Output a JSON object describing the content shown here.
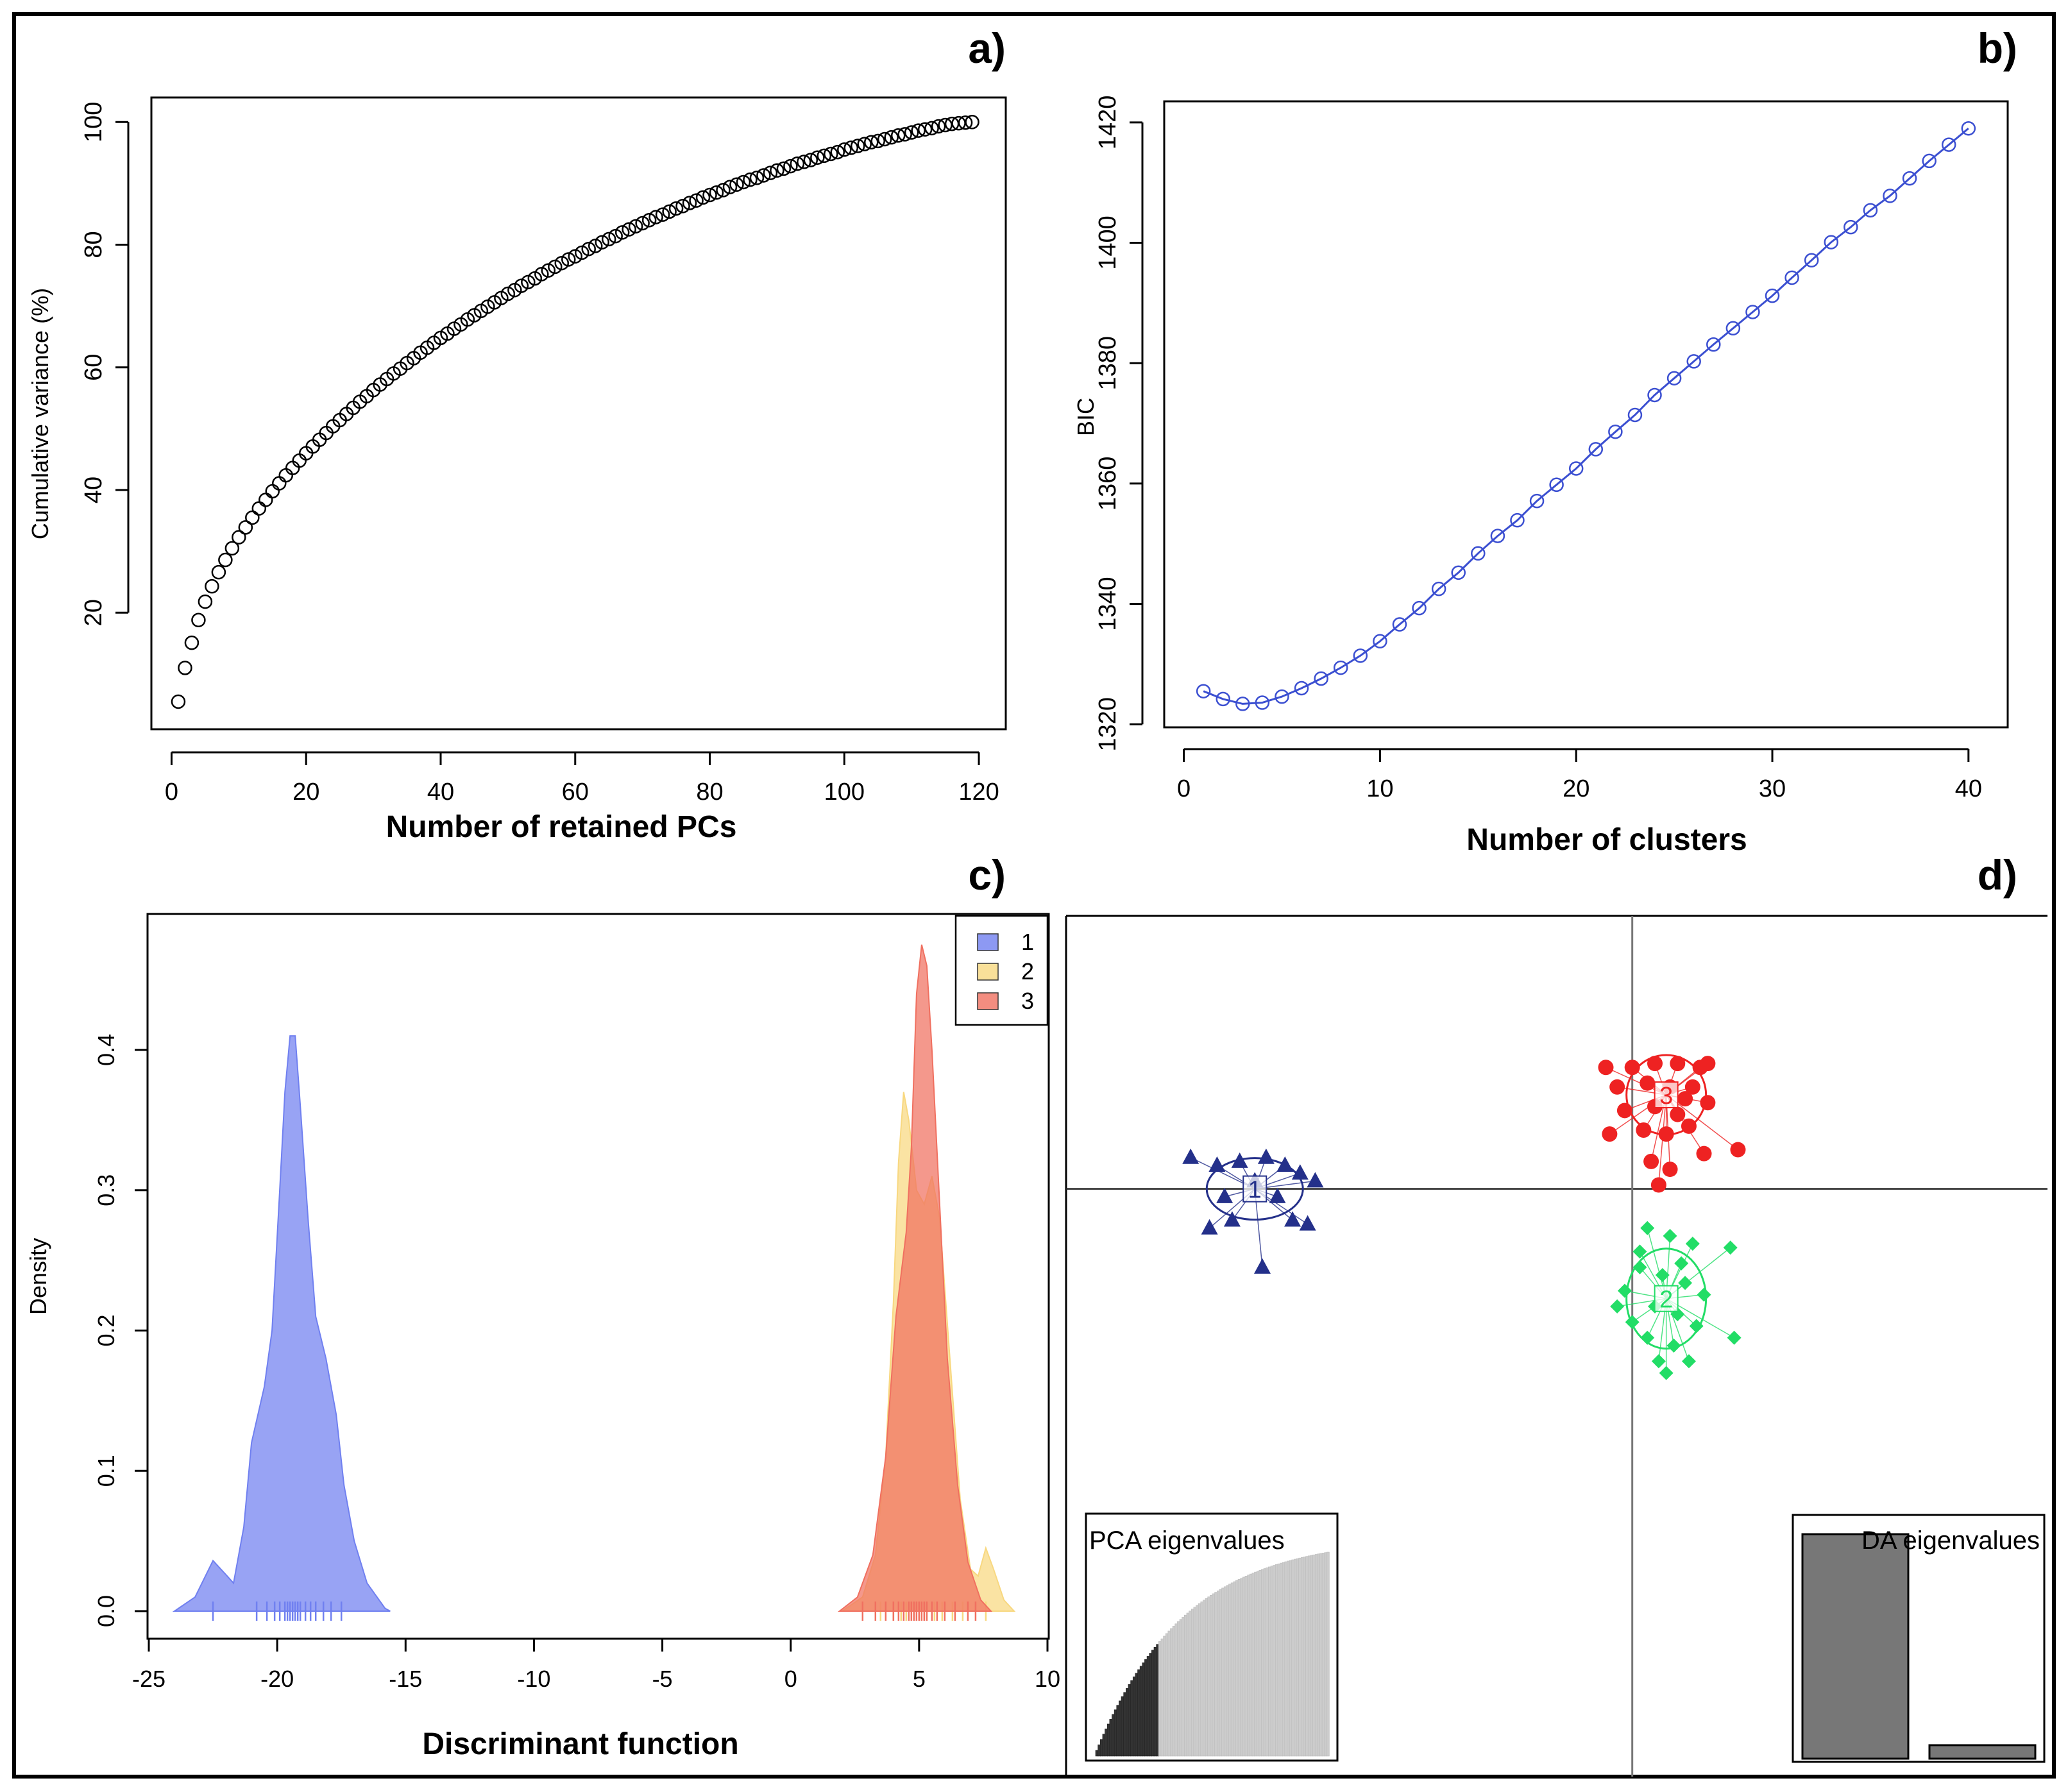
{
  "panels": {
    "a": {
      "label": "a)"
    },
    "b": {
      "label": "b)"
    },
    "c": {
      "label": "c)"
    },
    "d": {
      "label": "d)"
    }
  },
  "chart_data": [
    {
      "id": "a",
      "type": "scatter",
      "title": "",
      "xlabel": "Number of retained PCs",
      "ylabel": "Cumulative variance (%)",
      "xlim": [
        -3,
        124
      ],
      "ylim": [
        1,
        104
      ],
      "xticks": [
        0,
        20,
        40,
        60,
        80,
        100,
        120
      ],
      "yticks": [
        20,
        40,
        60,
        80,
        100
      ],
      "n_points": 119,
      "curve_model": "cumulative variance approx 100*(1-exp(-k/44))/(1-exp(-119/44)) + small offset; first value 5.5, last 100",
      "x": [
        1,
        2,
        3,
        4,
        5,
        6,
        7,
        8,
        9,
        10,
        11,
        12,
        13,
        14,
        15,
        16,
        17,
        18,
        19,
        20,
        21,
        22,
        23,
        24,
        25,
        26,
        27,
        28,
        29,
        30,
        31,
        32,
        33,
        34,
        35,
        36,
        37,
        38,
        39,
        40,
        41,
        42,
        43,
        44,
        45,
        46,
        47,
        48,
        49,
        50,
        51,
        52,
        53,
        54,
        55,
        56,
        57,
        58,
        59,
        60,
        61,
        62,
        63,
        64,
        65,
        66,
        67,
        68,
        69,
        70,
        71,
        72,
        73,
        74,
        75,
        76,
        77,
        78,
        79,
        80,
        81,
        82,
        83,
        84,
        85,
        86,
        87,
        88,
        89,
        90,
        91,
        92,
        93,
        94,
        95,
        96,
        97,
        98,
        99,
        100,
        101,
        102,
        103,
        104,
        105,
        106,
        107,
        108,
        109,
        110,
        111,
        112,
        113,
        114,
        115,
        116,
        117,
        118,
        119
      ],
      "y": [
        5.5,
        11.0,
        15.1,
        18.8,
        21.8,
        24.3,
        26.6,
        28.6,
        30.5,
        32.3,
        33.9,
        35.5,
        37.0,
        38.4,
        39.8,
        41.1,
        42.4,
        43.6,
        44.8,
        46.0,
        47.1,
        48.2,
        49.3,
        50.4,
        51.4,
        52.4,
        53.4,
        54.4,
        55.3,
        56.3,
        57.2,
        58.1,
        59.0,
        59.8,
        60.7,
        61.5,
        62.4,
        63.2,
        64.0,
        64.8,
        65.5,
        66.3,
        67.0,
        67.8,
        68.5,
        69.2,
        69.9,
        70.6,
        71.3,
        72.0,
        72.6,
        73.3,
        73.9,
        74.5,
        75.2,
        75.8,
        76.4,
        77.0,
        77.6,
        78.1,
        78.7,
        79.3,
        79.8,
        80.4,
        80.9,
        81.4,
        82.0,
        82.5,
        83.0,
        83.5,
        84.0,
        84.5,
        84.9,
        85.4,
        85.9,
        86.3,
        86.8,
        87.2,
        87.7,
        88.1,
        88.5,
        88.9,
        89.4,
        89.8,
        90.2,
        90.6,
        90.9,
        91.3,
        91.7,
        92.1,
        92.4,
        92.8,
        93.2,
        93.5,
        93.8,
        94.2,
        94.5,
        94.8,
        95.1,
        95.5,
        95.8,
        96.1,
        96.4,
        96.7,
        96.9,
        97.2,
        97.5,
        97.8,
        98.0,
        98.3,
        98.6,
        98.8,
        99.0,
        99.3,
        99.5,
        99.7,
        99.8,
        99.9,
        100.0
      ],
      "marker": "open-circle",
      "color": "#000000"
    },
    {
      "id": "b",
      "type": "line",
      "title": "",
      "xlabel": "Number of clusters",
      "ylabel": "BIC",
      "xlim": [
        -1,
        42
      ],
      "ylim": [
        1320,
        1420
      ],
      "xticks": [
        0,
        10,
        20,
        30,
        40
      ],
      "yticks": [
        1320,
        1340,
        1360,
        1380,
        1400,
        1420
      ],
      "x": [
        1,
        2,
        3,
        4,
        5,
        6,
        7,
        8,
        9,
        10,
        11,
        12,
        13,
        14,
        15,
        16,
        17,
        18,
        19,
        20,
        21,
        22,
        23,
        24,
        25,
        26,
        27,
        28,
        29,
        30,
        31,
        32,
        33,
        34,
        35,
        36,
        37,
        38,
        39,
        40
      ],
      "y": [
        1325.5,
        1324.2,
        1323.4,
        1323.6,
        1324.6,
        1326.0,
        1327.6,
        1329.4,
        1331.4,
        1333.8,
        1336.6,
        1339.3,
        1342.5,
        1345.2,
        1348.4,
        1351.3,
        1353.9,
        1357.1,
        1359.8,
        1362.5,
        1365.7,
        1368.6,
        1371.4,
        1374.7,
        1377.5,
        1380.3,
        1383.1,
        1385.8,
        1388.5,
        1391.2,
        1394.2,
        1397.1,
        1400.1,
        1402.6,
        1405.4,
        1407.8,
        1410.7,
        1413.6,
        1416.3,
        1419.0
      ],
      "marker": "open-circle",
      "color": "#3b4fd1"
    },
    {
      "id": "c",
      "type": "area",
      "title": "",
      "xlabel": "Discriminant function",
      "ylabel": "Density",
      "xlim": [
        -25,
        10
      ],
      "ylim": [
        -0.02,
        0.49
      ],
      "xticks": [
        -25,
        -20,
        -15,
        -10,
        -5,
        0,
        5,
        10
      ],
      "yticks": [
        0.0,
        0.1,
        0.2,
        0.3,
        0.4
      ],
      "legend": {
        "position": "top-right",
        "entries": [
          "1",
          "2",
          "3"
        ]
      },
      "series": [
        {
          "name": "1",
          "color": "#7080f0",
          "points": [
            [
              -24,
              0
            ],
            [
              -23.2,
              0.01
            ],
            [
              -22.5,
              0.036
            ],
            [
              -22.0,
              0.026
            ],
            [
              -21.7,
              0.02
            ],
            [
              -21.3,
              0.06
            ],
            [
              -21.0,
              0.12
            ],
            [
              -20.5,
              0.16
            ],
            [
              -20.2,
              0.2
            ],
            [
              -19.9,
              0.3
            ],
            [
              -19.7,
              0.37
            ],
            [
              -19.5,
              0.41
            ],
            [
              -19.3,
              0.41
            ],
            [
              -19.1,
              0.36
            ],
            [
              -18.8,
              0.28
            ],
            [
              -18.5,
              0.21
            ],
            [
              -18.1,
              0.18
            ],
            [
              -17.7,
              0.14
            ],
            [
              -17.4,
              0.09
            ],
            [
              -17.0,
              0.05
            ],
            [
              -16.5,
              0.02
            ],
            [
              -15.8,
              0.002
            ],
            [
              -15.6,
              0
            ]
          ],
          "rug": [
            -22.5,
            -20.8,
            -20.4,
            -20.1,
            -19.9,
            -19.7,
            -19.6,
            -19.5,
            -19.4,
            -19.3,
            -19.2,
            -19.1,
            -18.9,
            -18.7,
            -18.5,
            -18.2,
            -17.9,
            -17.5
          ]
        },
        {
          "name": "2",
          "color": "#f8d880",
          "points": [
            [
              2.0,
              0
            ],
            [
              2.8,
              0.01
            ],
            [
              3.3,
              0.04
            ],
            [
              3.7,
              0.11
            ],
            [
              4.0,
              0.22
            ],
            [
              4.2,
              0.32
            ],
            [
              4.4,
              0.37
            ],
            [
              4.6,
              0.35
            ],
            [
              4.9,
              0.3
            ],
            [
              5.2,
              0.29
            ],
            [
              5.5,
              0.31
            ],
            [
              5.8,
              0.28
            ],
            [
              6.2,
              0.18
            ],
            [
              6.6,
              0.08
            ],
            [
              7.0,
              0.03
            ],
            [
              7.3,
              0.025
            ],
            [
              7.6,
              0.045
            ],
            [
              7.9,
              0.03
            ],
            [
              8.3,
              0.008
            ],
            [
              8.7,
              0
            ]
          ],
          "rug": [
            3.5,
            4.0,
            4.3,
            4.5,
            4.8,
            5.1,
            5.3,
            5.6,
            5.9,
            6.3,
            6.7,
            7.6
          ]
        },
        {
          "name": "3",
          "color": "#f07060",
          "points": [
            [
              1.9,
              0
            ],
            [
              2.6,
              0.01
            ],
            [
              3.2,
              0.04
            ],
            [
              3.7,
              0.11
            ],
            [
              4.1,
              0.21
            ],
            [
              4.5,
              0.27
            ],
            [
              4.7,
              0.33
            ],
            [
              4.9,
              0.44
            ],
            [
              5.1,
              0.475
            ],
            [
              5.3,
              0.46
            ],
            [
              5.5,
              0.4
            ],
            [
              5.8,
              0.29
            ],
            [
              6.1,
              0.18
            ],
            [
              6.5,
              0.09
            ],
            [
              6.9,
              0.035
            ],
            [
              7.4,
              0.008
            ],
            [
              7.8,
              0
            ]
          ],
          "rug": [
            2.8,
            3.3,
            3.7,
            4.0,
            4.2,
            4.4,
            4.6,
            4.7,
            4.8,
            4.9,
            5.0,
            5.1,
            5.2,
            5.3,
            5.5,
            5.7,
            6.0,
            6.4,
            6.9,
            7.2
          ]
        }
      ]
    },
    {
      "id": "d",
      "type": "scatter",
      "title": "",
      "xlim": [
        -7.5,
        5.5
      ],
      "ylim": [
        -7.5,
        3.5
      ],
      "clusters": [
        {
          "name": "1",
          "color": "#24308a",
          "marker": "triangle",
          "center": [
            -5.0,
            0
          ],
          "points": [
            [
              -5.5,
              0.3
            ],
            [
              -5.2,
              0.35
            ],
            [
              -4.85,
              0.4
            ],
            [
              -4.6,
              0.3
            ],
            [
              -4.4,
              0.2
            ],
            [
              -5.4,
              -0.1
            ],
            [
              -5.0,
              0.1
            ],
            [
              -4.7,
              -0.1
            ],
            [
              -5.3,
              -0.4
            ],
            [
              -4.5,
              -0.4
            ],
            [
              -4.2,
              0.1
            ],
            [
              -5.6,
              -0.5
            ],
            [
              -4.9,
              -1.0
            ],
            [
              -4.3,
              -0.45
            ],
            [
              -5.85,
              0.4
            ]
          ]
        },
        {
          "name": "2",
          "color": "#22dd66",
          "marker": "diamond",
          "center": [
            0.45,
            -1.4
          ],
          "points": [
            [
              0.2,
              -0.5
            ],
            [
              0.5,
              -0.6
            ],
            [
              0.8,
              -0.7
            ],
            [
              0.1,
              -1.0
            ],
            [
              0.4,
              -1.1
            ],
            [
              0.7,
              -1.2
            ],
            [
              0.95,
              -1.35
            ],
            [
              -0.1,
              -1.3
            ],
            [
              0.3,
              -1.5
            ],
            [
              0.6,
              -1.6
            ],
            [
              0.0,
              -1.7
            ],
            [
              0.85,
              -1.75
            ],
            [
              0.2,
              -1.9
            ],
            [
              0.55,
              -2.0
            ],
            [
              0.35,
              -2.2
            ],
            [
              0.75,
              -2.2
            ],
            [
              -0.2,
              -1.5
            ],
            [
              1.3,
              -0.75
            ],
            [
              1.35,
              -1.9
            ],
            [
              0.45,
              -2.35
            ],
            [
              0.1,
              -0.8
            ],
            [
              0.65,
              -0.95
            ]
          ]
        },
        {
          "name": "3",
          "color": "#ee2222",
          "marker": "circle",
          "center": [
            0.45,
            1.2
          ],
          "points": [
            [
              0.0,
              1.55
            ],
            [
              0.3,
              1.6
            ],
            [
              0.6,
              1.6
            ],
            [
              0.9,
              1.55
            ],
            [
              -0.2,
              1.3
            ],
            [
              0.2,
              1.35
            ],
            [
              0.5,
              1.3
            ],
            [
              0.8,
              1.3
            ],
            [
              1.0,
              1.1
            ],
            [
              -0.1,
              1.0
            ],
            [
              0.3,
              1.05
            ],
            [
              0.6,
              0.95
            ],
            [
              0.15,
              0.75
            ],
            [
              0.45,
              0.7
            ],
            [
              0.75,
              0.8
            ],
            [
              -0.3,
              0.7
            ],
            [
              0.25,
              0.35
            ],
            [
              0.5,
              0.25
            ],
            [
              0.35,
              0.05
            ],
            [
              1.0,
              1.6
            ],
            [
              -0.35,
              1.55
            ],
            [
              0.95,
              0.45
            ],
            [
              1.4,
              0.5
            ],
            [
              0.7,
              1.15
            ]
          ]
        }
      ],
      "inset_pca": {
        "title": "PCA eigenvalues",
        "n_bars": 100,
        "n_retained": 27
      },
      "inset_da": {
        "title": "DA eigenvalues",
        "values": [
          1.0,
          0.06
        ]
      }
    }
  ]
}
